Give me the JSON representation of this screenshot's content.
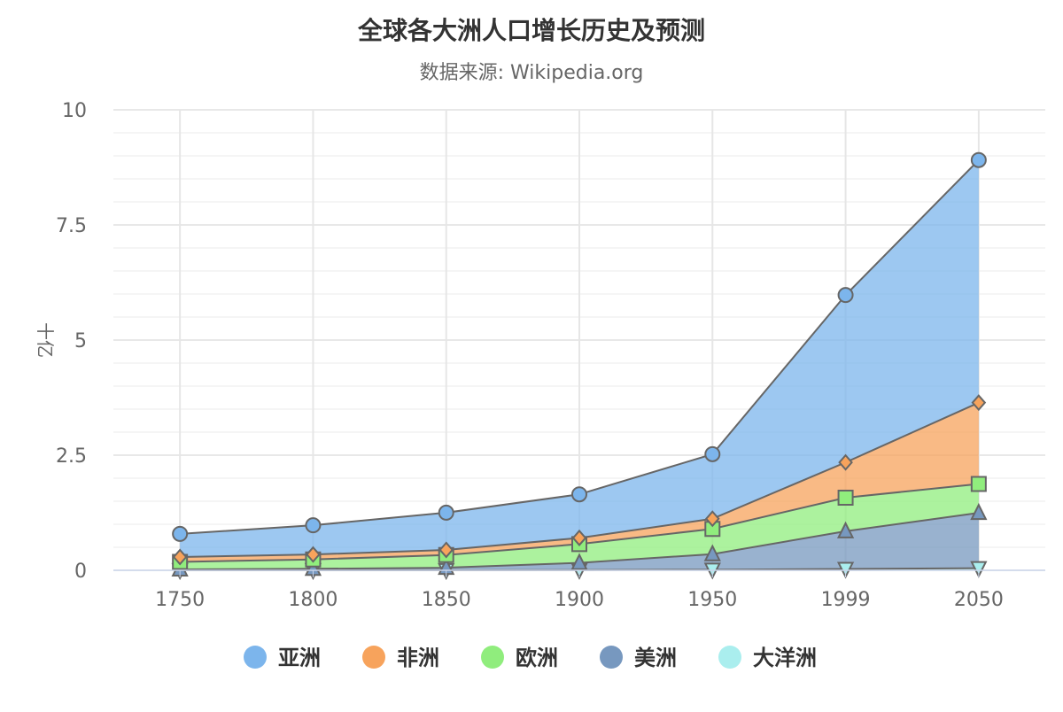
{
  "chart_data": {
    "type": "area",
    "stacked": true,
    "title": "全球各大洲人口增长历史及预测",
    "subtitle": "数据来源: Wikipedia.org",
    "xlabel": "",
    "ylabel": "十亿",
    "categories": [
      "1750",
      "1800",
      "1850",
      "1900",
      "1950",
      "1999",
      "2050"
    ],
    "ylim": [
      0,
      10
    ],
    "yticks": [
      "0",
      "2.5",
      "5",
      "7.5",
      "10"
    ],
    "grid": true,
    "legend_position": "bottom",
    "series": [
      {
        "name": "亚洲",
        "color": "#7cb5ec",
        "marker": "circle",
        "values": [
          0.502,
          0.635,
          0.809,
          0.947,
          1.402,
          3.634,
          5.268
        ]
      },
      {
        "name": "非洲",
        "color": "#f7a35c",
        "marker": "diamond",
        "values": [
          0.106,
          0.107,
          0.111,
          0.133,
          0.221,
          0.767,
          1.766
        ]
      },
      {
        "name": "欧洲",
        "color": "#90ed7d",
        "marker": "square",
        "values": [
          0.163,
          0.203,
          0.276,
          0.408,
          0.547,
          0.729,
          0.628
        ]
      },
      {
        "name": "美洲",
        "color": "#7798bf",
        "marker": "triangle",
        "values": [
          0.018,
          0.031,
          0.054,
          0.156,
          0.339,
          0.818,
          1.201
        ]
      },
      {
        "name": "大洋洲",
        "color": "#aaeeee",
        "marker": "triangle-down",
        "values": [
          0.002,
          0.002,
          0.002,
          0.006,
          0.013,
          0.03,
          0.046
        ]
      }
    ]
  }
}
